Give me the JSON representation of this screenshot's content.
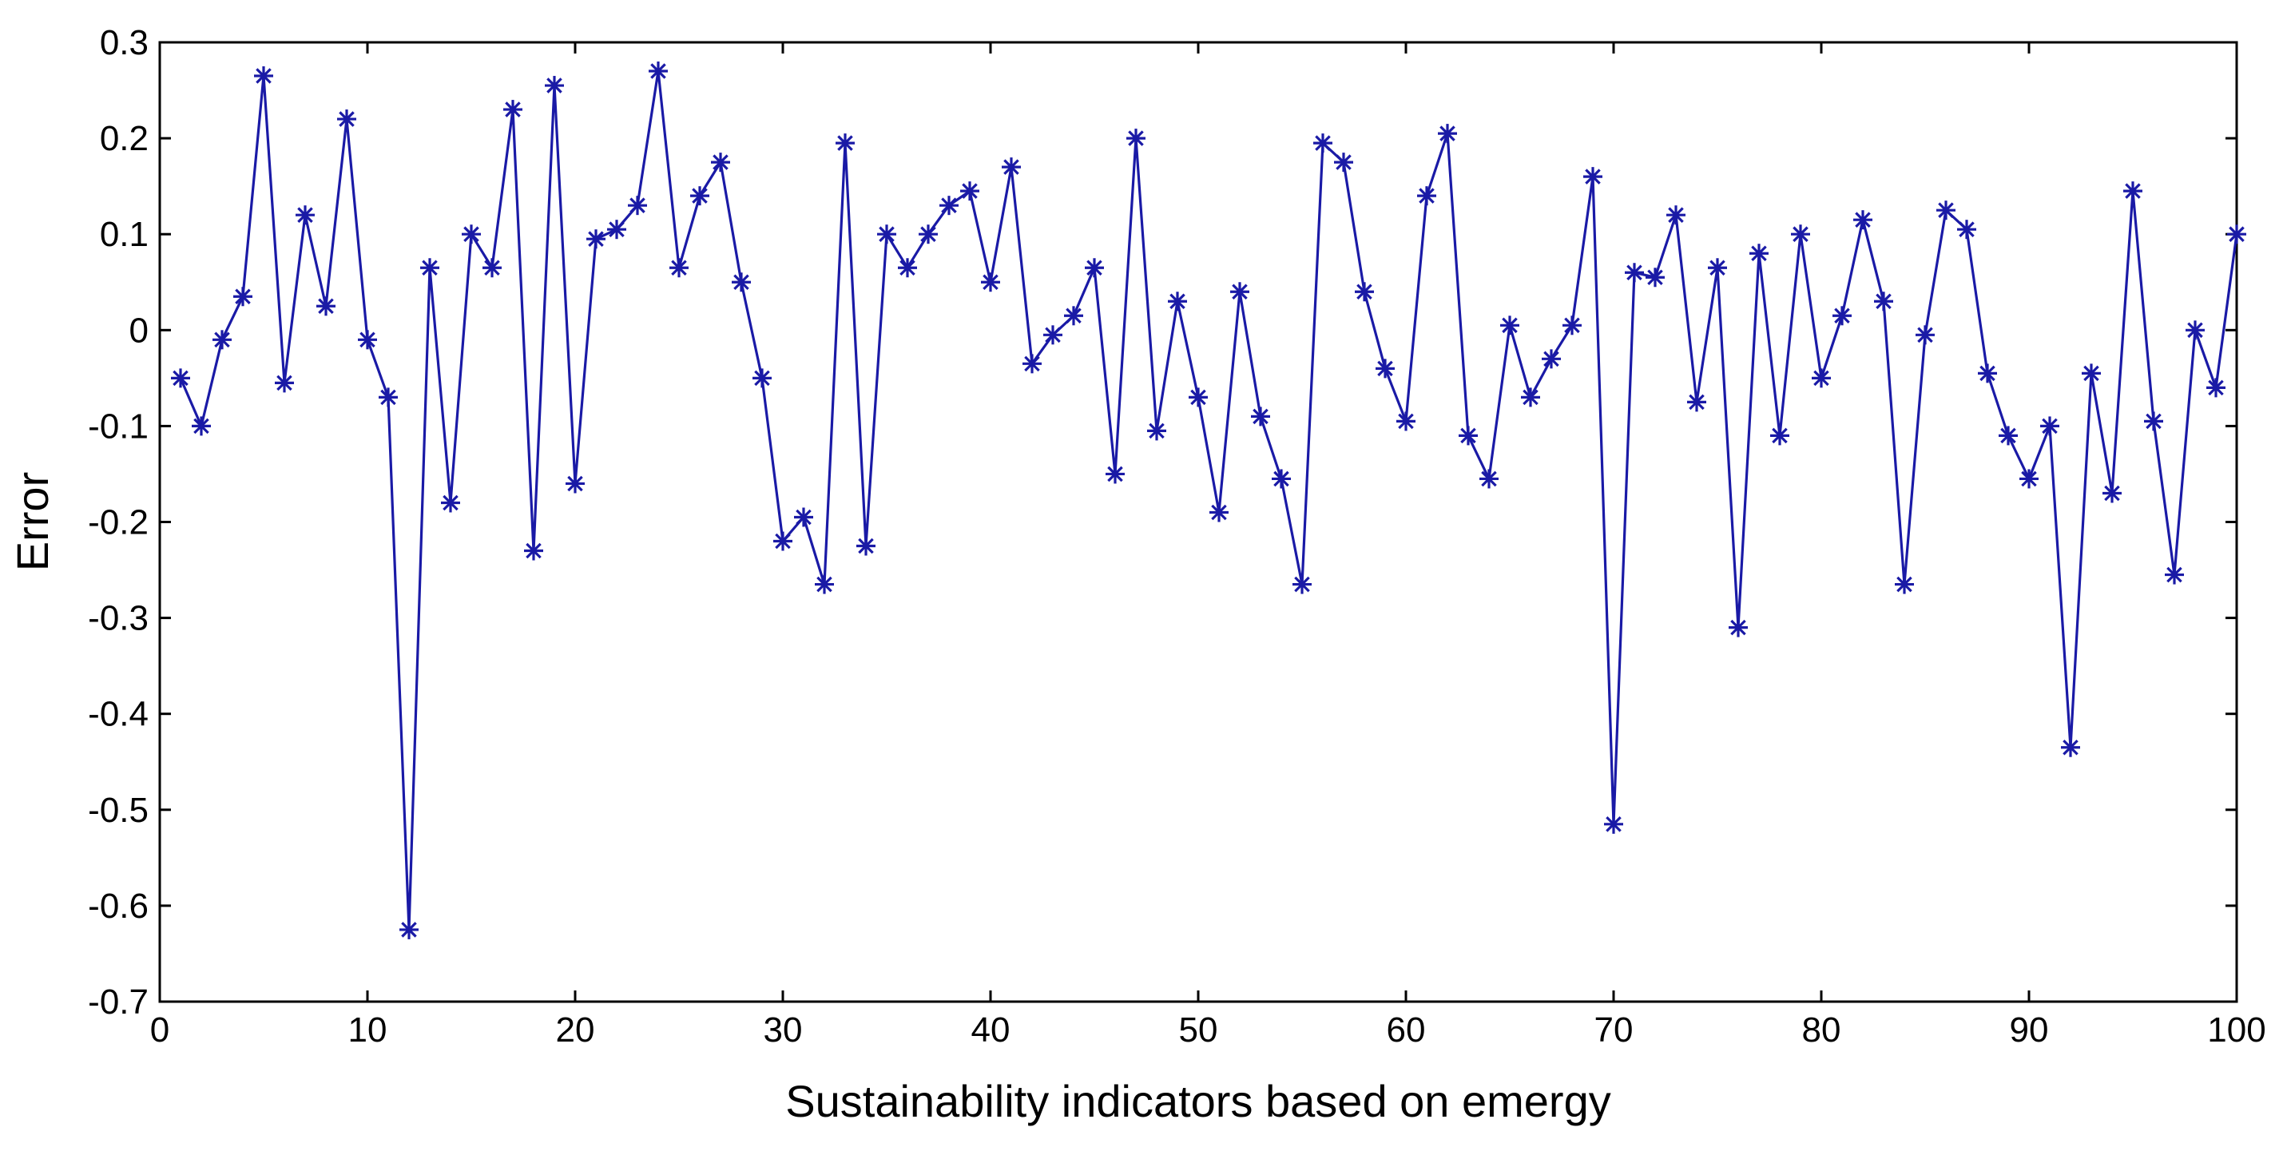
{
  "chart_data": {
    "type": "line",
    "title": "",
    "xlabel": "Sustainability indicators based on emergy",
    "ylabel": "Error",
    "xlim": [
      0,
      100
    ],
    "ylim": [
      -0.7,
      0.3
    ],
    "xticks": [
      0,
      10,
      20,
      30,
      40,
      50,
      60,
      70,
      80,
      90,
      100
    ],
    "yticks": [
      0.3,
      0.2,
      0.1,
      0,
      -0.1,
      -0.2,
      -0.3,
      -0.4,
      -0.5,
      -0.6,
      -0.7
    ],
    "xtick_labels": [
      "0",
      "10",
      "20",
      "30",
      "40",
      "50",
      "60",
      "70",
      "80",
      "90",
      "100"
    ],
    "ytick_labels": [
      "0.3",
      "0.2",
      "0.1",
      "0",
      "-0.1",
      "-0.2",
      "-0.3",
      "-0.4",
      "-0.5",
      "-0.6",
      "-0.7"
    ],
    "grid": false,
    "marker": "asterisk",
    "series_color": "#1a1aa6",
    "series": [
      {
        "name": "Error",
        "x": [
          1,
          2,
          3,
          4,
          5,
          6,
          7,
          8,
          9,
          10,
          11,
          12,
          13,
          14,
          15,
          16,
          17,
          18,
          19,
          20,
          21,
          22,
          23,
          24,
          25,
          26,
          27,
          28,
          29,
          30,
          31,
          32,
          33,
          34,
          35,
          36,
          37,
          38,
          39,
          40,
          41,
          42,
          43,
          44,
          45,
          46,
          47,
          48,
          49,
          50,
          51,
          52,
          53,
          54,
          55,
          56,
          57,
          58,
          59,
          60,
          61,
          62,
          63,
          64,
          65,
          66,
          67,
          68,
          69,
          70,
          71,
          72,
          73,
          74,
          75,
          76,
          77,
          78,
          79,
          80,
          81,
          82,
          83,
          84,
          85,
          86,
          87,
          88,
          89,
          90,
          91,
          92,
          93,
          94,
          95,
          96,
          97,
          98,
          99,
          100
        ],
        "values": [
          -0.05,
          -0.1,
          -0.01,
          0.035,
          0.265,
          -0.055,
          0.12,
          0.025,
          0.22,
          -0.01,
          -0.07,
          -0.625,
          0.065,
          -0.18,
          0.1,
          0.065,
          0.23,
          -0.23,
          0.255,
          -0.16,
          0.095,
          0.105,
          0.13,
          0.27,
          0.065,
          0.14,
          0.175,
          0.05,
          -0.05,
          -0.22,
          -0.195,
          -0.265,
          0.195,
          -0.225,
          0.1,
          0.065,
          0.1,
          0.13,
          0.145,
          0.05,
          0.17,
          -0.035,
          -0.005,
          0.015,
          0.065,
          -0.15,
          0.2,
          -0.105,
          0.03,
          -0.07,
          -0.19,
          0.04,
          -0.09,
          -0.155,
          -0.265,
          0.195,
          0.175,
          0.04,
          -0.04,
          -0.095,
          0.14,
          0.205,
          -0.11,
          -0.155,
          0.005,
          -0.07,
          -0.03,
          0.005,
          0.16,
          -0.515,
          0.06,
          0.055,
          0.12,
          -0.075,
          0.065,
          -0.31,
          0.08,
          -0.11,
          0.1,
          -0.05,
          0.015,
          0.115,
          0.03,
          -0.265,
          -0.005,
          0.125,
          0.105,
          -0.045,
          -0.11,
          -0.155,
          -0.1,
          -0.435,
          -0.045,
          -0.17,
          0.145,
          -0.095,
          -0.255,
          0.0,
          -0.06,
          0.1
        ]
      }
    ]
  }
}
